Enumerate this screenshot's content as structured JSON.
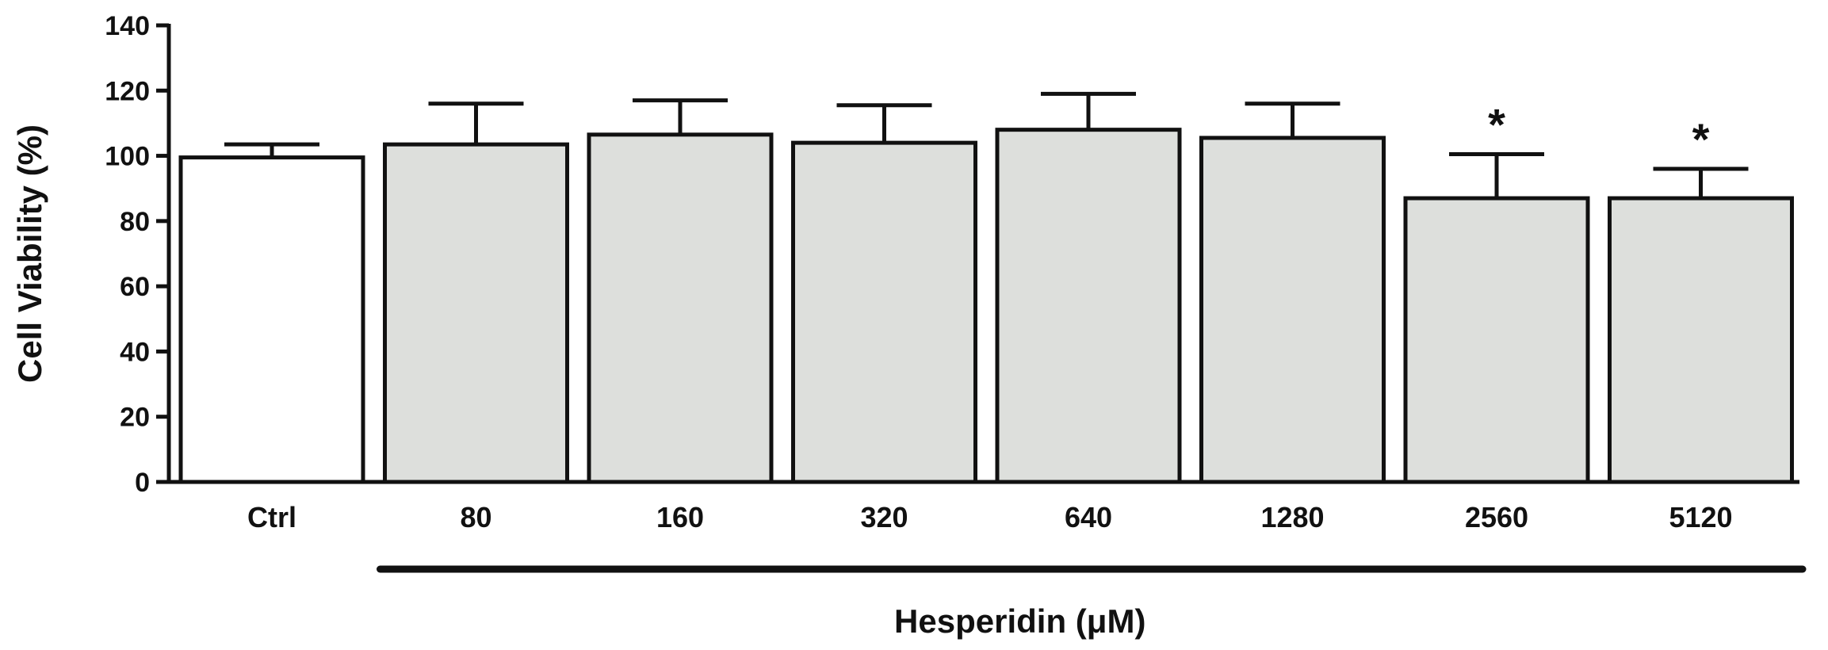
{
  "chart_data": {
    "type": "bar",
    "ylabel": "Cell Viability (%)",
    "xlabel": "Hesperidin (μM)",
    "ylim": [
      0,
      140
    ],
    "yticks": [
      0,
      20,
      40,
      60,
      80,
      100,
      120,
      140
    ],
    "categories": [
      "Ctrl",
      "80",
      "160",
      "320",
      "640",
      "1280",
      "2560",
      "5120"
    ],
    "values": [
      99.5,
      103.5,
      106.5,
      104,
      108,
      105.5,
      87,
      87
    ],
    "error_upper": [
      4,
      12.5,
      10.5,
      11.5,
      11,
      10.5,
      13.5,
      9
    ],
    "significance": [
      "",
      "",
      "",
      "",
      "",
      "",
      "*",
      "*"
    ],
    "grid": false,
    "colors": {
      "control_fill": "#ffffff",
      "treatment_fill": "#dddfdc",
      "stroke": "#111111"
    }
  }
}
